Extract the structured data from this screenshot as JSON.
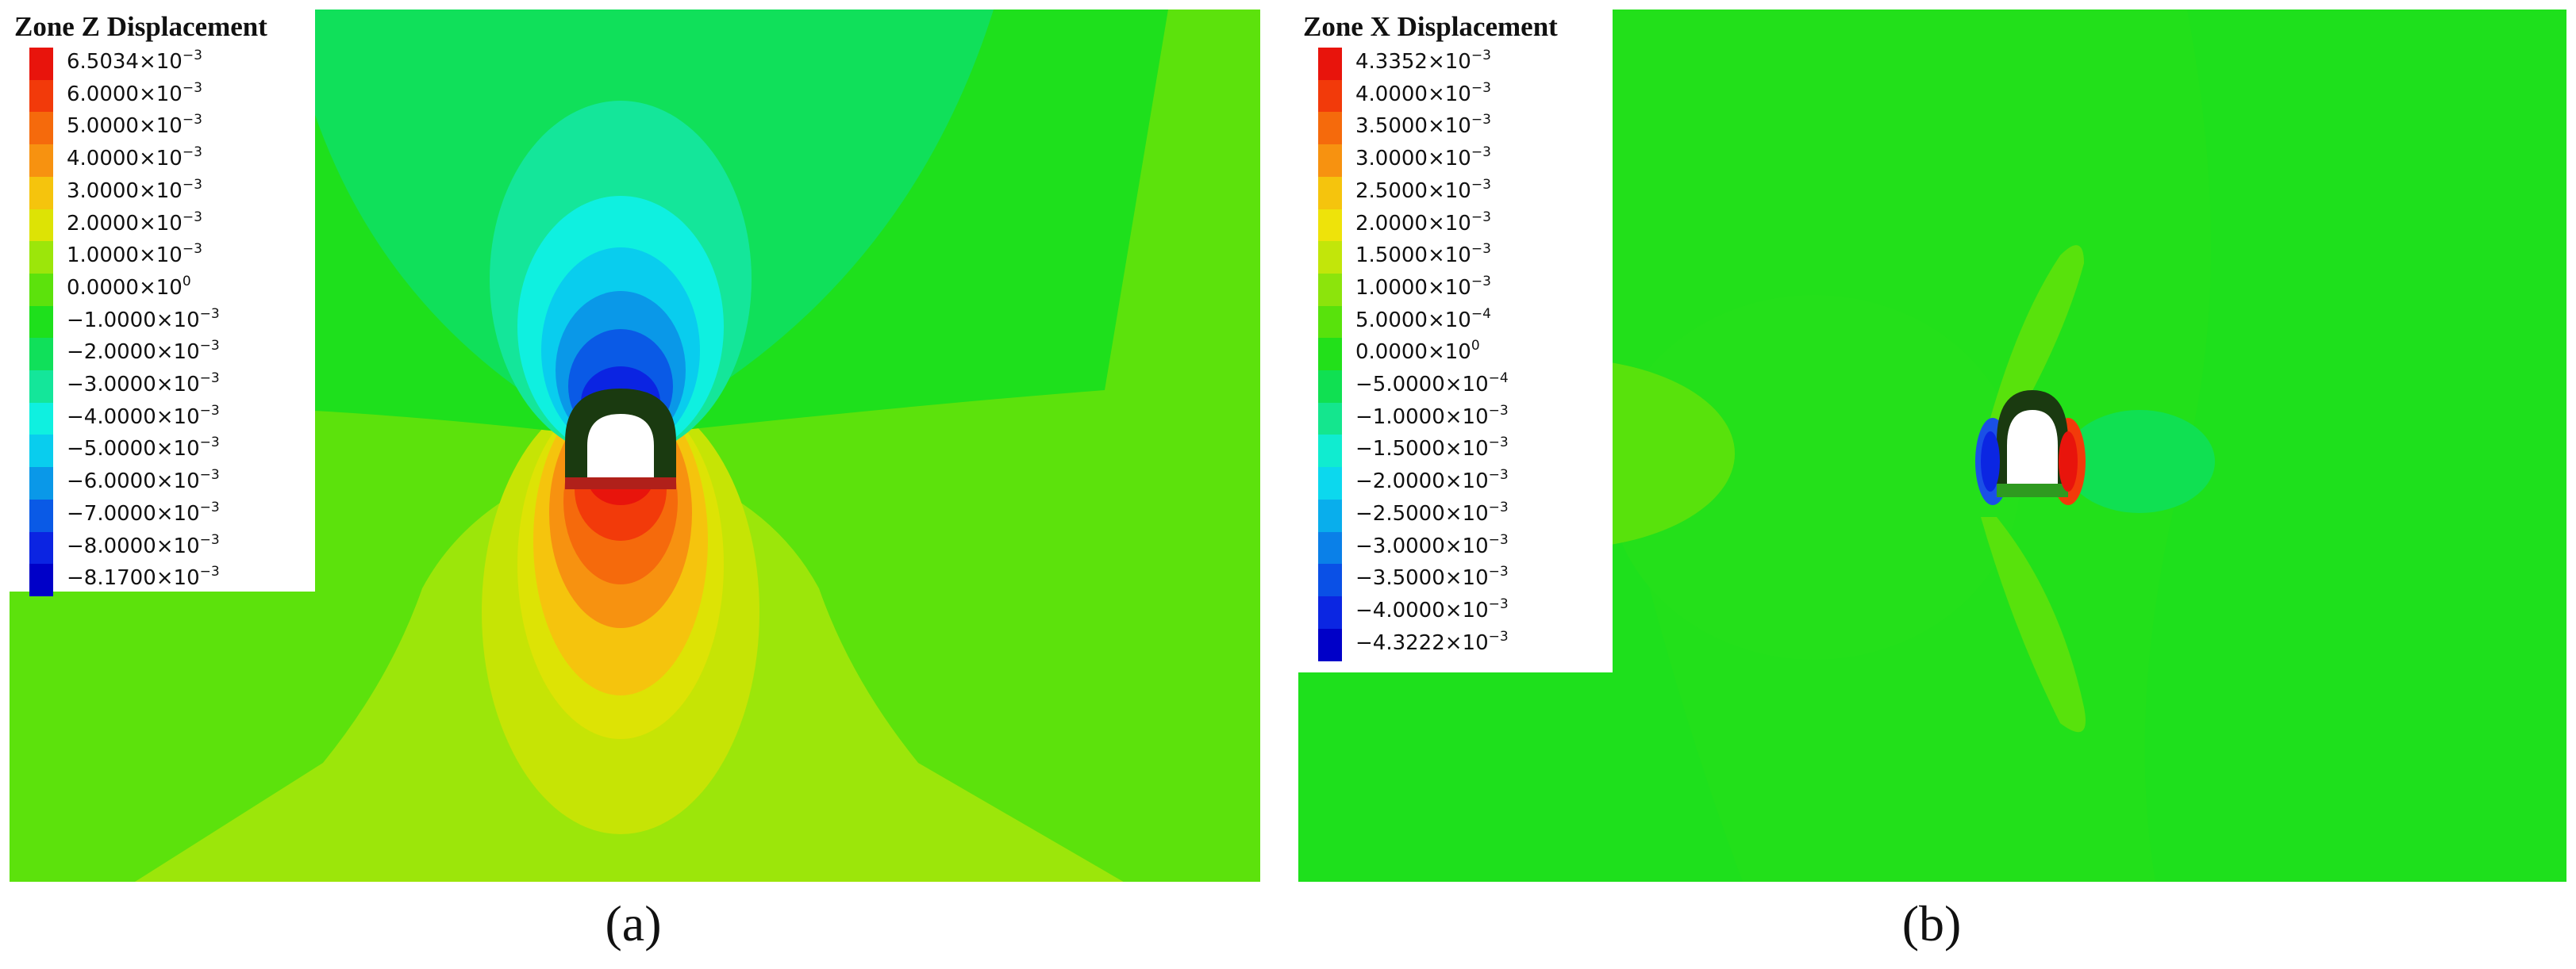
{
  "panels": [
    {
      "id": "a",
      "legend_title": "Zone Z Displacement",
      "caption": "(a)",
      "legend": [
        {
          "mantissa": "6.5034",
          "exp": "-3",
          "color": "#e8140c"
        },
        {
          "mantissa": "6.0000",
          "exp": "-3",
          "color": "#f23a0a"
        },
        {
          "mantissa": "5.0000",
          "exp": "-3",
          "color": "#f56a0c"
        },
        {
          "mantissa": "4.0000",
          "exp": "-3",
          "color": "#f79210"
        },
        {
          "mantissa": "3.0000",
          "exp": "-3",
          "color": "#f5c40d"
        },
        {
          "mantissa": "2.0000",
          "exp": "-3",
          "color": "#dde305"
        },
        {
          "mantissa": "1.0000",
          "exp": "-3",
          "color": "#9ce60a"
        },
        {
          "mantissa": "0.0000",
          "exp": "0",
          "color": "#5ce20c"
        },
        {
          "mantissa": "−1.0000",
          "exp": "-3",
          "color": "#1ee01c"
        },
        {
          "mantissa": "−2.0000",
          "exp": "-3",
          "color": "#10e05a"
        },
        {
          "mantissa": "−3.0000",
          "exp": "-3",
          "color": "#14e69a"
        },
        {
          "mantissa": "−4.0000",
          "exp": "-3",
          "color": "#0ff0e0"
        },
        {
          "mantissa": "−5.0000",
          "exp": "-3",
          "color": "#09cdee"
        },
        {
          "mantissa": "−6.0000",
          "exp": "-3",
          "color": "#0a98e8"
        },
        {
          "mantissa": "−7.0000",
          "exp": "-3",
          "color": "#0a5ae6"
        },
        {
          "mantissa": "−8.0000",
          "exp": "-3",
          "color": "#0b24e2"
        },
        {
          "mantissa": "−8.1700",
          "exp": "-3",
          "color": "#0000c8"
        }
      ]
    },
    {
      "id": "b",
      "legend_title": "Zone X Displacement",
      "caption": "(b)",
      "legend": [
        {
          "mantissa": "4.3352",
          "exp": "-3",
          "color": "#e8140c"
        },
        {
          "mantissa": "4.0000",
          "exp": "-3",
          "color": "#f23a0a"
        },
        {
          "mantissa": "3.5000",
          "exp": "-3",
          "color": "#f56a0c"
        },
        {
          "mantissa": "3.0000",
          "exp": "-3",
          "color": "#f79210"
        },
        {
          "mantissa": "2.5000",
          "exp": "-3",
          "color": "#f5c40d"
        },
        {
          "mantissa": "2.0000",
          "exp": "-3",
          "color": "#eee30a"
        },
        {
          "mantissa": "1.5000",
          "exp": "-3",
          "color": "#c2e60a"
        },
        {
          "mantissa": "1.0000",
          "exp": "-3",
          "color": "#8ce40c"
        },
        {
          "mantissa": "5.0000",
          "exp": "-4",
          "color": "#58e20c"
        },
        {
          "mantissa": "0.0000",
          "exp": "0",
          "color": "#22e01a"
        },
        {
          "mantissa": "−5.0000",
          "exp": "-4",
          "color": "#10e052"
        },
        {
          "mantissa": "−1.0000",
          "exp": "-3",
          "color": "#14e68e"
        },
        {
          "mantissa": "−1.5000",
          "exp": "-3",
          "color": "#10ecd0"
        },
        {
          "mantissa": "−2.0000",
          "exp": "-3",
          "color": "#0cd8ee"
        },
        {
          "mantissa": "−2.5000",
          "exp": "-3",
          "color": "#09aeec"
        },
        {
          "mantissa": "−3.0000",
          "exp": "-3",
          "color": "#0a80e8"
        },
        {
          "mantissa": "−3.5000",
          "exp": "-3",
          "color": "#0a50e6"
        },
        {
          "mantissa": "−4.0000",
          "exp": "-3",
          "color": "#0b26e2"
        },
        {
          "mantissa": "−4.3222",
          "exp": "-3",
          "color": "#0000c8"
        }
      ]
    }
  ]
}
